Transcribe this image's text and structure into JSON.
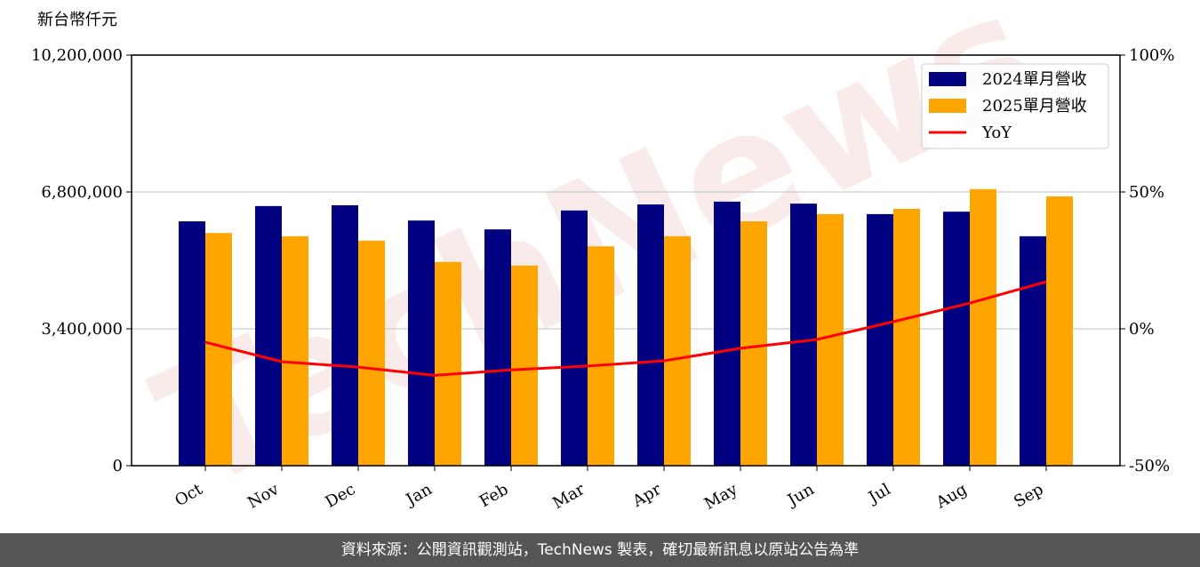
{
  "chart_data": {
    "type": "bar",
    "y_label": "新台幣仟元",
    "watermark": "TechNews",
    "categories": [
      "Oct",
      "Nov",
      "Dec",
      "Jan",
      "Feb",
      "Mar",
      "Apr",
      "May",
      "Jun",
      "Jul",
      "Aug",
      "Sep"
    ],
    "series": [
      {
        "name": "2024單月營收",
        "color": "#000080",
        "type": "bar",
        "values": [
          6070000,
          6450000,
          6470000,
          6090000,
          5870000,
          6340000,
          6490000,
          6560000,
          6510000,
          6250000,
          6310000,
          5700000
        ]
      },
      {
        "name": "2025單月營收",
        "color": "#ffa500",
        "type": "bar",
        "values": [
          5780000,
          5700000,
          5590000,
          5060000,
          4970000,
          5450000,
          5700000,
          6070000,
          6250000,
          6380000,
          6870000,
          6690000
        ]
      },
      {
        "name": "YoY",
        "color": "#ff0000",
        "type": "line",
        "axis": "y2",
        "values": [
          -4.9,
          -12,
          -14,
          -17,
          -15,
          -13.6,
          -11.7,
          -7.1,
          -3.9,
          2.6,
          9.4,
          17.2
        ]
      }
    ],
    "ylim": [
      0,
      10200000
    ],
    "yticks": [
      0,
      {
        "value": 3400000,
        "label": "3,400,000"
      },
      {
        "value": 6800000,
        "label": "6,800,000"
      },
      {
        "value": 10200000,
        "label": "10,200,000"
      }
    ],
    "y2lim": [
      -50,
      100
    ],
    "y2ticks": [
      {
        "value": -50,
        "label": "-50%"
      },
      {
        "value": 0,
        "label": "0%"
      },
      {
        "value": 50,
        "label": "50%"
      },
      {
        "value": 100,
        "label": "100%"
      }
    ],
    "grid": true,
    "legend": "upper right"
  },
  "footer": "資料來源：公開資訊觀測站，TechNews 製表，確切最新訊息以原站公告為準"
}
